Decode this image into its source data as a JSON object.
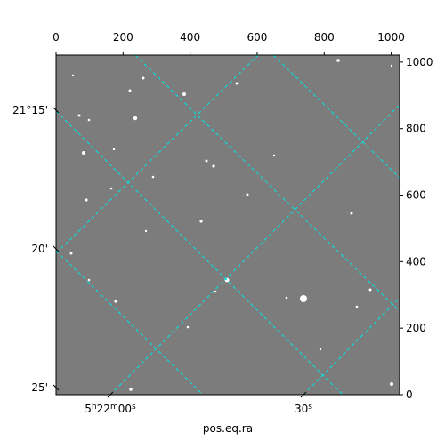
{
  "chart_data": {
    "type": "image",
    "xlabel": "pos.eq.ra",
    "xlim": [
      0,
      1025
    ],
    "xticks": [
      0,
      200,
      400,
      600,
      800,
      1000
    ],
    "ylim": [
      0,
      1021
    ],
    "yticks": [
      0,
      200,
      400,
      600,
      800,
      1000
    ],
    "world_yticks": [
      "21°15'",
      "20'",
      "25'"
    ],
    "world_xticks": [
      "5h22m00s",
      "30s"
    ]
  }
}
